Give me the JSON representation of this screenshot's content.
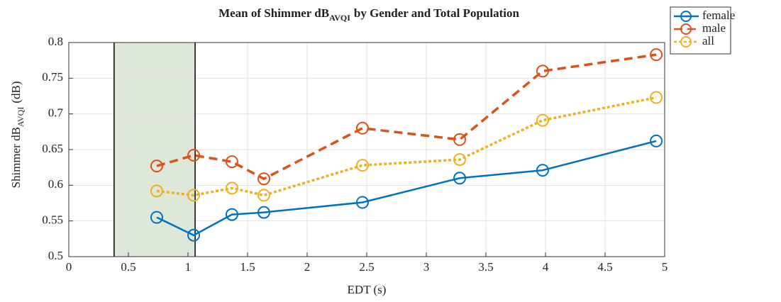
{
  "chart_data": {
    "type": "line",
    "title": [
      "Mean of Shimmer dB",
      "AVQI",
      "by Gender and Total Population"
    ],
    "xlabel": "EDT (s)",
    "ylabel": [
      "Shimmer dB",
      "AVQI",
      "(dB)"
    ],
    "x": [
      0.738,
      1.048,
      1.369,
      1.637,
      2.464,
      3.28,
      3.976,
      4.929
    ],
    "series": [
      {
        "name": "female",
        "color": "#0072bd",
        "style": "solid",
        "values": [
          0.555,
          0.53,
          0.559,
          0.562,
          0.576,
          0.61,
          0.621,
          0.662
        ]
      },
      {
        "name": "male",
        "color": "#d95319",
        "style": "dashed",
        "values": [
          0.627,
          0.642,
          0.633,
          0.609,
          0.68,
          0.664,
          0.76,
          0.783
        ]
      },
      {
        "name": "all",
        "color": "#edb120",
        "style": "dotted",
        "values": [
          0.592,
          0.586,
          0.596,
          0.586,
          0.628,
          0.636,
          0.691,
          0.723
        ]
      }
    ],
    "shaded_region": [
      0.38,
      1.06
    ],
    "shaded_color": "#dde8d8",
    "xlim": [
      0,
      5
    ],
    "xticks": [
      0,
      0.5,
      1,
      1.5,
      2,
      2.5,
      3,
      3.5,
      4,
      4.5,
      5
    ],
    "ylim": [
      0.5,
      0.8
    ],
    "yticks": [
      0.5,
      0.55,
      0.6,
      0.65,
      0.7,
      0.75,
      0.8
    ],
    "grid": true,
    "legend": "outside-top-right"
  }
}
